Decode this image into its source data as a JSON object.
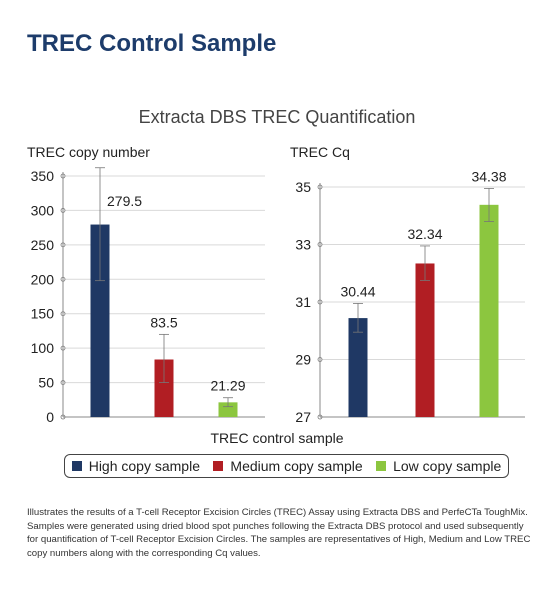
{
  "page": {
    "title": "TREC Control Sample",
    "caption": "Illustrates the results of a T-cell Receptor Excision Circles (TREC) Assay using Extracta DBS and PerfeCTa ToughMix. Samples were generated using dried blood spot punches following the Extracta DBS protocol and used subsequently for quantification of T-cell Receptor Excision Circles. The samples are representatives of High, Medium and Low TREC copy numbers along with the corresponding Cq values."
  },
  "figure": {
    "title": "Extracta DBS TREC Quantification",
    "xlabel": "TREC control sample",
    "legend": {
      "placement": "bottom",
      "entries": [
        {
          "label": "High copy sample",
          "color": "#1f3864"
        },
        {
          "label": "Medium copy sample",
          "color": "#b11e23"
        },
        {
          "label": "Low copy sample",
          "color": "#8cc63f"
        }
      ]
    }
  },
  "chart_data": [
    {
      "type": "bar",
      "ylabel": "TREC copy number",
      "categories": [
        "High copy sample",
        "Medium copy sample",
        "Low copy sample"
      ],
      "values": [
        279.5,
        83.5,
        21.29
      ],
      "value_labels": [
        "279.5",
        "83.5",
        "21.29"
      ],
      "error_low": [
        198,
        50,
        15
      ],
      "error_high": [
        362,
        120,
        28
      ],
      "ylim": [
        0,
        350
      ],
      "yticks": [
        "0",
        "50",
        "100",
        "150",
        "200",
        "250",
        "300",
        "350"
      ],
      "ytick_values": [
        0,
        50,
        100,
        150,
        200,
        250,
        300,
        350
      ],
      "grid": true,
      "colors": [
        "#1f3864",
        "#b11e23",
        "#8cc63f"
      ]
    },
    {
      "type": "bar",
      "ylabel": "TREC Cq",
      "categories": [
        "High copy sample",
        "Medium copy sample",
        "Low copy sample"
      ],
      "values": [
        30.44,
        32.34,
        34.38
      ],
      "value_labels": [
        "30.44",
        "32.34",
        "34.38"
      ],
      "error_low": [
        29.95,
        31.75,
        33.8
      ],
      "error_high": [
        30.95,
        32.95,
        34.95
      ],
      "ylim": [
        27,
        35
      ],
      "yticks": [
        "27",
        "29",
        "31",
        "33",
        "35"
      ],
      "ytick_values": [
        27,
        29,
        31,
        33,
        35
      ],
      "grid": true,
      "colors": [
        "#1f3864",
        "#b11e23",
        "#8cc63f"
      ]
    }
  ]
}
